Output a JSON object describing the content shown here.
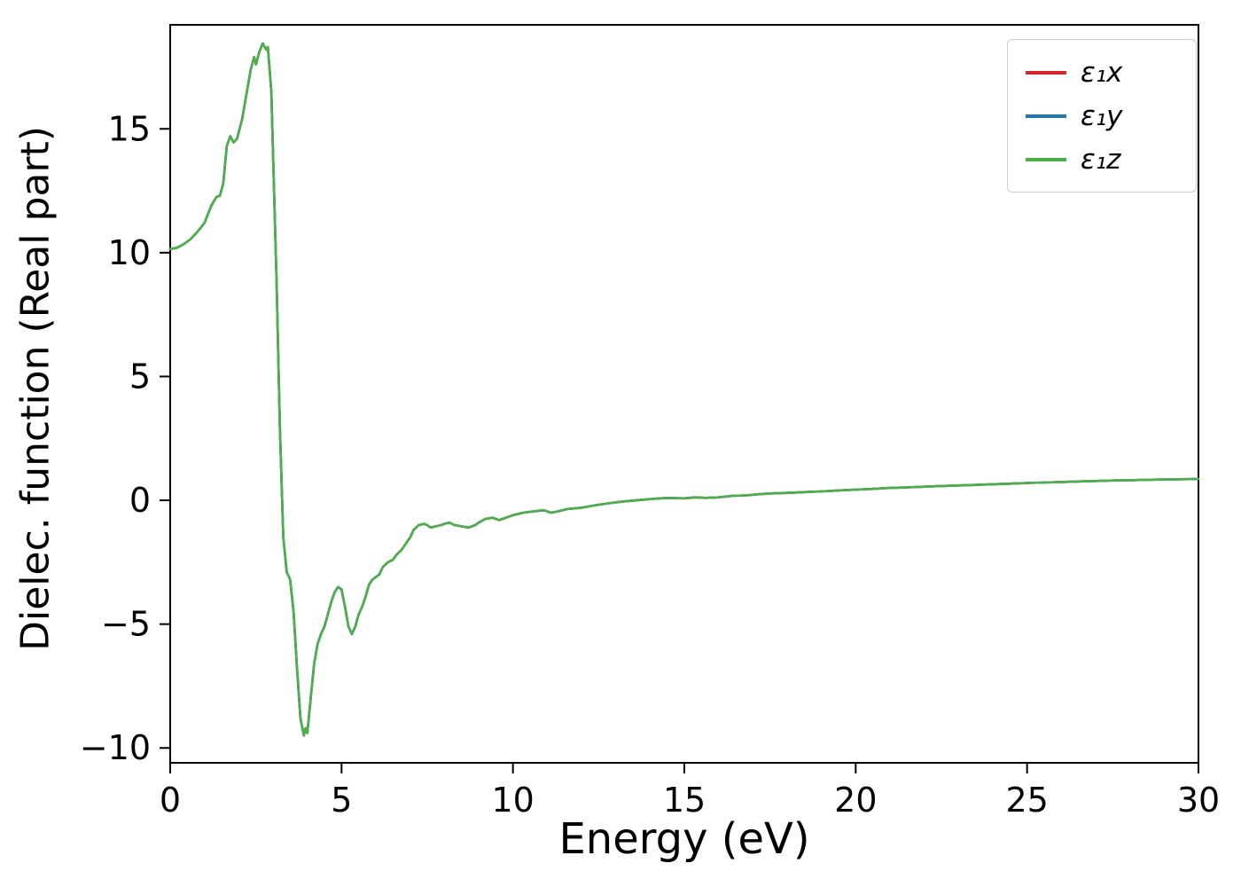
{
  "chart_data": {
    "type": "line",
    "title": "",
    "xlabel": "Energy (eV)",
    "ylabel": "Dielec. function (Real part)",
    "xlim": [
      0,
      30
    ],
    "ylim": [
      -10.6,
      19.2
    ],
    "xticks": [
      0,
      5,
      10,
      15,
      20,
      25,
      30
    ],
    "yticks": [
      -10,
      -5,
      0,
      5,
      10,
      15
    ],
    "grid": false,
    "legend_position": "upper right",
    "overlap_note": "All three components overlap exactly; only the last-drawn green curve is visible.",
    "x": [
      0,
      0.2,
      0.4,
      0.6,
      0.8,
      1.0,
      1.2,
      1.35,
      1.45,
      1.55,
      1.65,
      1.75,
      1.85,
      1.95,
      2.1,
      2.25,
      2.35,
      2.45,
      2.5,
      2.6,
      2.7,
      2.8,
      2.85,
      2.95,
      3.0,
      3.1,
      3.2,
      3.3,
      3.4,
      3.5,
      3.6,
      3.7,
      3.8,
      3.9,
      3.95,
      4.0,
      4.1,
      4.2,
      4.3,
      4.4,
      4.5,
      4.6,
      4.7,
      4.8,
      4.9,
      5.0,
      5.1,
      5.2,
      5.3,
      5.4,
      5.5,
      5.6,
      5.7,
      5.8,
      5.9,
      6.0,
      6.1,
      6.2,
      6.35,
      6.5,
      6.6,
      6.75,
      6.9,
      7.0,
      7.1,
      7.25,
      7.4,
      7.5,
      7.6,
      7.75,
      7.9,
      8.0,
      8.15,
      8.3,
      8.5,
      8.7,
      8.9,
      9.0,
      9.2,
      9.4,
      9.6,
      9.8,
      10.0,
      10.3,
      10.6,
      10.9,
      11.1,
      11.3,
      11.6,
      12.0,
      12.4,
      12.8,
      13.2,
      13.6,
      14.0,
      14.5,
      15.0,
      15.3,
      15.6,
      16.0,
      16.4,
      16.8,
      17.2,
      17.6,
      18.0,
      18.5,
      19.0,
      19.5,
      20.0,
      20.5,
      21.0,
      21.5,
      22.0,
      22.5,
      23.0,
      23.5,
      24.0,
      24.5,
      25.0,
      25.5,
      26.0,
      26.5,
      27.0,
      27.5,
      28.0,
      28.5,
      29.0,
      29.5,
      30.0
    ],
    "y_shared": [
      10.15,
      10.2,
      10.35,
      10.55,
      10.85,
      11.2,
      11.9,
      12.25,
      12.3,
      12.8,
      14.3,
      14.7,
      14.45,
      14.6,
      15.4,
      16.6,
      17.4,
      17.9,
      17.6,
      18.1,
      18.45,
      18.2,
      18.3,
      16.5,
      14.0,
      9.0,
      3.0,
      -1.5,
      -2.9,
      -3.2,
      -4.5,
      -6.8,
      -8.8,
      -9.5,
      -9.2,
      -9.4,
      -8.0,
      -6.6,
      -5.8,
      -5.4,
      -5.1,
      -4.6,
      -4.1,
      -3.7,
      -3.5,
      -3.6,
      -4.3,
      -5.1,
      -5.4,
      -5.1,
      -4.6,
      -4.3,
      -3.9,
      -3.4,
      -3.2,
      -3.1,
      -3.0,
      -2.7,
      -2.5,
      -2.4,
      -2.2,
      -2.0,
      -1.7,
      -1.5,
      -1.2,
      -1.0,
      -0.95,
      -1.0,
      -1.1,
      -1.05,
      -1.0,
      -0.95,
      -0.9,
      -1.0,
      -1.05,
      -1.1,
      -1.0,
      -0.9,
      -0.75,
      -0.7,
      -0.8,
      -0.7,
      -0.6,
      -0.5,
      -0.45,
      -0.4,
      -0.5,
      -0.45,
      -0.35,
      -0.3,
      -0.2,
      -0.12,
      -0.05,
      0.0,
      0.05,
      0.1,
      0.08,
      0.12,
      0.1,
      0.12,
      0.18,
      0.2,
      0.25,
      0.28,
      0.3,
      0.33,
      0.36,
      0.4,
      0.43,
      0.46,
      0.5,
      0.52,
      0.55,
      0.58,
      0.6,
      0.62,
      0.65,
      0.67,
      0.7,
      0.72,
      0.74,
      0.76,
      0.78,
      0.8,
      0.81,
      0.83,
      0.84,
      0.85,
      0.86
    ],
    "series": [
      {
        "name": "epsilon1-x",
        "label": "ε₁x",
        "color": "#d62728",
        "values_key": "y_shared"
      },
      {
        "name": "epsilon1-y",
        "label": "ε₁y",
        "color": "#1f77b4",
        "values_key": "y_shared"
      },
      {
        "name": "epsilon1-z",
        "label": "ε₁z",
        "color": "#4daf4a",
        "values_key": "y_shared"
      }
    ]
  }
}
